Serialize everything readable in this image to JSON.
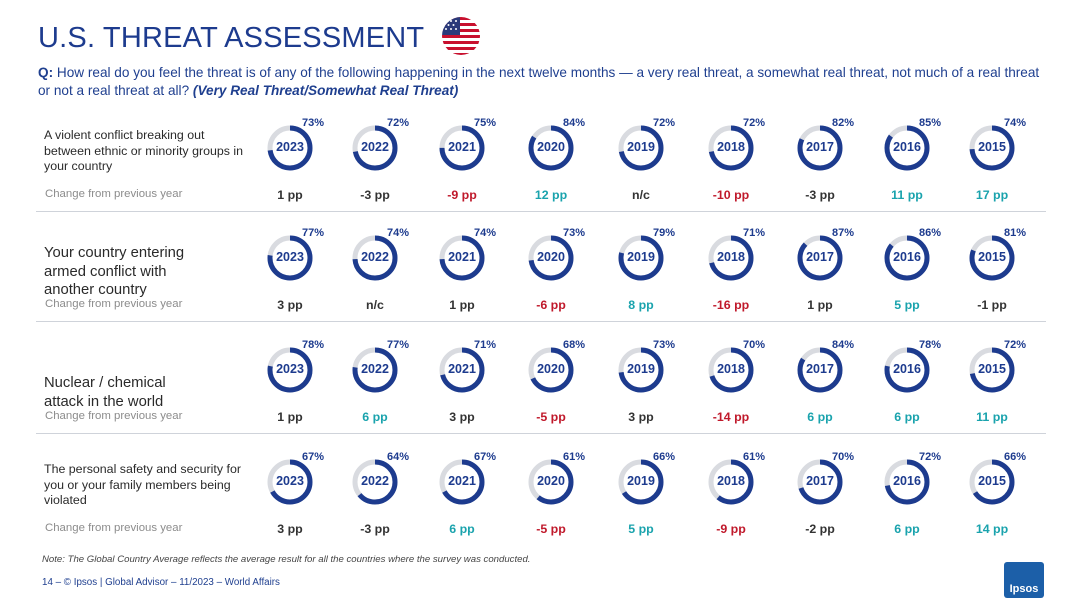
{
  "header": {
    "title": "U.S. THREAT ASSESSMENT",
    "question_prefix": "Q:",
    "question_text": " How real do you feel the threat is of any of the following happening in the next twelve months — a very real threat, a somewhat real threat, not much of a real threat or not a real threat at all?",
    "question_suffix": "(Very Real Threat/Somewhat Real Threat)"
  },
  "colors": {
    "accent": "#1d3b8e",
    "ring_track": "#d9dbe0",
    "positive": "#1aa3ad",
    "negative": "#c0192b",
    "neutral": "#333333"
  },
  "chart_data": {
    "type": "donut-grid",
    "title": "U.S. THREAT ASSESSMENT",
    "years": [
      "2023",
      "2022",
      "2021",
      "2020",
      "2019",
      "2018",
      "2017",
      "2016",
      "2015"
    ],
    "change_row_label": "Change from previous year",
    "rows": [
      {
        "label": "A violent conflict breaking out between ethnic or minority groups in your country",
        "values": [
          73,
          72,
          75,
          84,
          72,
          72,
          82,
          85,
          74
        ],
        "value_labels": [
          "73%",
          "72%",
          "75%",
          "84%",
          "72%",
          "72%",
          "82%",
          "85%",
          "74%"
        ],
        "changes": [
          "1 pp",
          "-3 pp",
          "-9 pp",
          "12 pp",
          "n/c",
          "-10 pp",
          "-3 pp",
          "11 pp",
          "17 pp"
        ],
        "change_colors": [
          "neutral",
          "neutral",
          "negative",
          "positive",
          "neutral",
          "negative",
          "neutral",
          "positive",
          "positive"
        ]
      },
      {
        "label": "Your country entering armed conflict with another country",
        "values": [
          77,
          74,
          74,
          73,
          79,
          71,
          87,
          86,
          81
        ],
        "value_labels": [
          "77%",
          "74%",
          "74%",
          "73%",
          "79%",
          "71%",
          "87%",
          "86%",
          "81%"
        ],
        "changes": [
          "3 pp",
          "n/c",
          "1 pp",
          "-6 pp",
          "8 pp",
          "-16 pp",
          "1 pp",
          "5 pp",
          "-1 pp"
        ],
        "change_colors": [
          "neutral",
          "neutral",
          "neutral",
          "negative",
          "positive",
          "negative",
          "neutral",
          "positive",
          "neutral"
        ]
      },
      {
        "label": "Nuclear / chemical attack in the world",
        "values": [
          78,
          77,
          71,
          68,
          73,
          70,
          84,
          78,
          72
        ],
        "value_labels": [
          "78%",
          "77%",
          "71%",
          "68%",
          "73%",
          "70%",
          "84%",
          "78%",
          "72%"
        ],
        "changes": [
          "1 pp",
          "6 pp",
          "3 pp",
          "-5 pp",
          "3 pp",
          "-14 pp",
          "6 pp",
          "6 pp",
          "11 pp"
        ],
        "change_colors": [
          "neutral",
          "positive",
          "neutral",
          "negative",
          "neutral",
          "negative",
          "positive",
          "positive",
          "positive"
        ]
      },
      {
        "label": "The personal safety and security for you or your family members being violated",
        "values": [
          67,
          64,
          67,
          61,
          66,
          61,
          70,
          72,
          66
        ],
        "value_labels": [
          "67%",
          "64%",
          "67%",
          "61%",
          "66%",
          "61%",
          "70%",
          "72%",
          "66%"
        ],
        "changes": [
          "3 pp",
          "-3 pp",
          "6 pp",
          "-5 pp",
          "5 pp",
          "-9 pp",
          "-2 pp",
          "6 pp",
          "14 pp"
        ],
        "change_colors": [
          "neutral",
          "neutral",
          "positive",
          "negative",
          "positive",
          "negative",
          "neutral",
          "positive",
          "positive"
        ]
      }
    ]
  },
  "note": "Note: The Global Country Average reflects the average result for all the countries where the survey was conducted.",
  "footer": "14 – © Ipsos | Global Advisor – 11/2023 – World Affairs",
  "logo_text": "Ipsos"
}
